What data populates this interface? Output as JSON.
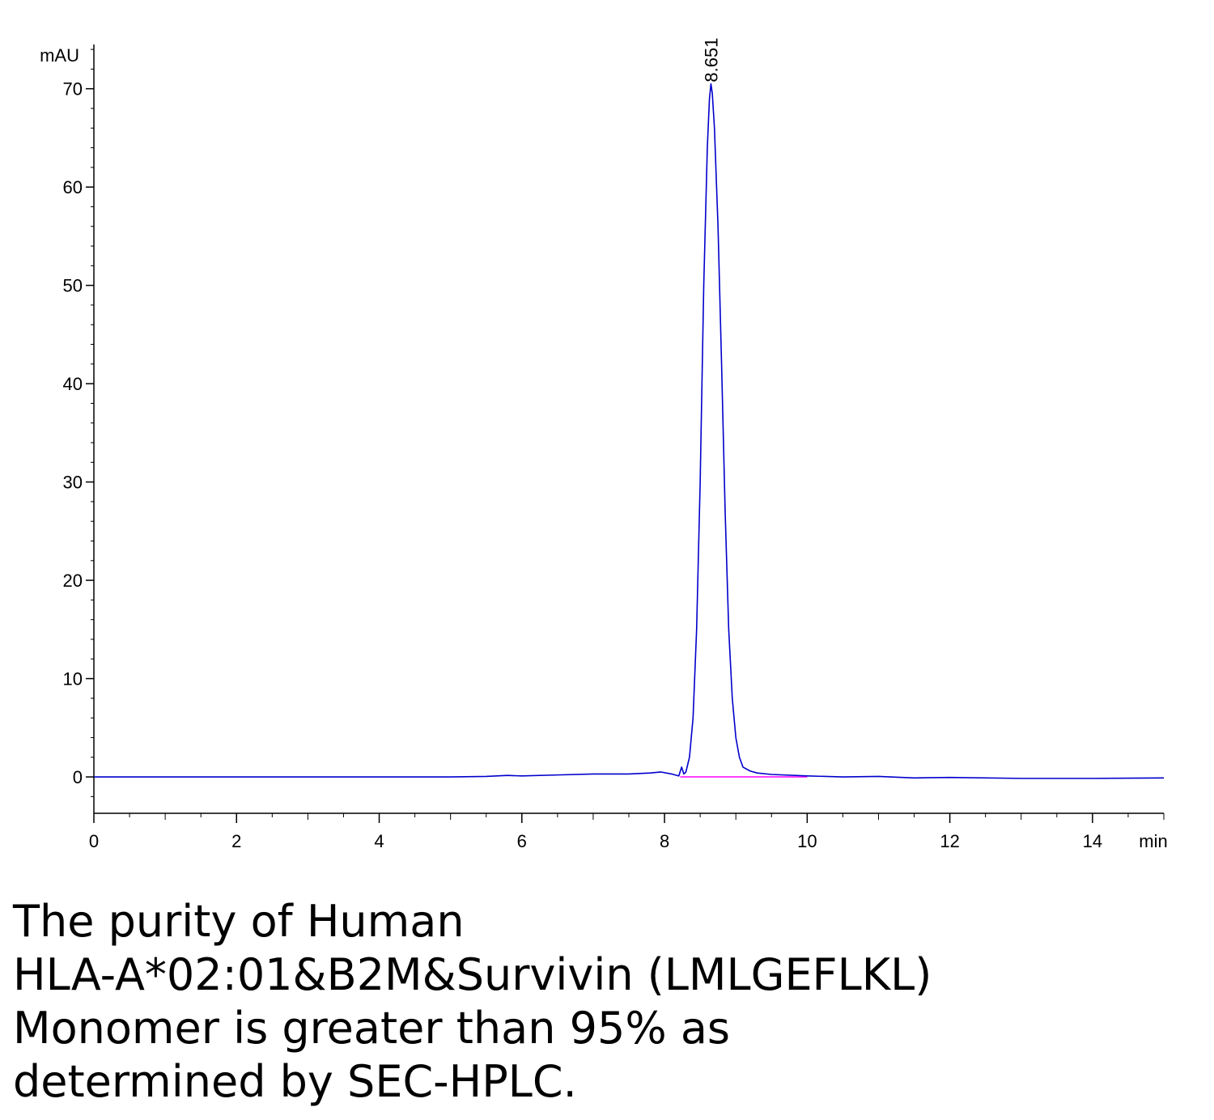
{
  "chart_data": {
    "type": "line",
    "title": "",
    "xlabel": "min",
    "ylabel": "mAU",
    "xlim": [
      0,
      15
    ],
    "ylim": [
      -3.7,
      74.5
    ],
    "x_ticks": [
      0,
      2,
      4,
      6,
      8,
      10,
      12,
      14
    ],
    "y_ticks": [
      0,
      10,
      20,
      30,
      40,
      50,
      60,
      70
    ],
    "x_tick_labels": [
      "0",
      "2",
      "4",
      "6",
      "8",
      "10",
      "12",
      "14"
    ],
    "y_tick_labels": [
      "0",
      "10",
      "20",
      "30",
      "40",
      "50",
      "60",
      "70"
    ],
    "grid": false,
    "legend": "none",
    "colors": {
      "signal": "#0000cc",
      "baseline": "#ff00ff",
      "axis": "#000000"
    },
    "series": [
      {
        "x": [
          0,
          1,
          2,
          3,
          4,
          5,
          5.5,
          5.8,
          6,
          6.5,
          7,
          7.5,
          7.8,
          7.95,
          8.1,
          8.2,
          8.24,
          8.27,
          8.3,
          8.35,
          8.4,
          8.45,
          8.5,
          8.55,
          8.6,
          8.63,
          8.651,
          8.67,
          8.7,
          8.75,
          8.8,
          8.85,
          8.9,
          8.95,
          9.0,
          9.05,
          9.1,
          9.2,
          9.3,
          9.5,
          10,
          10.5,
          11,
          11.5,
          12,
          13,
          14,
          15
        ],
        "values": [
          0,
          0,
          0,
          0,
          0,
          0,
          0.05,
          0.15,
          0.1,
          0.2,
          0.3,
          0.3,
          0.4,
          0.5,
          0.3,
          0.1,
          1.0,
          0.3,
          0.5,
          2.0,
          6.0,
          15.0,
          30.0,
          50.0,
          64.0,
          69.0,
          70.5,
          69.5,
          66.0,
          56.0,
          42.0,
          27.0,
          15.0,
          8.0,
          4.0,
          2.0,
          1.0,
          0.6,
          0.4,
          0.25,
          0.1,
          0.0,
          0.05,
          -0.1,
          -0.05,
          -0.15,
          -0.15,
          -0.1
        ]
      }
    ],
    "baseline": {
      "x": [
        8.22,
        10.0
      ],
      "values": [
        0,
        0
      ]
    },
    "annotations": [
      {
        "x": 8.651,
        "y": 70.5,
        "text": "8.651"
      }
    ]
  },
  "caption": {
    "lines": [
      "The purity of Human",
      "HLA-A*02:01&B2M&Survivin (LMLGEFLKL)",
      "Monomer is greater than 95% as",
      "determined by SEC-HPLC."
    ]
  }
}
